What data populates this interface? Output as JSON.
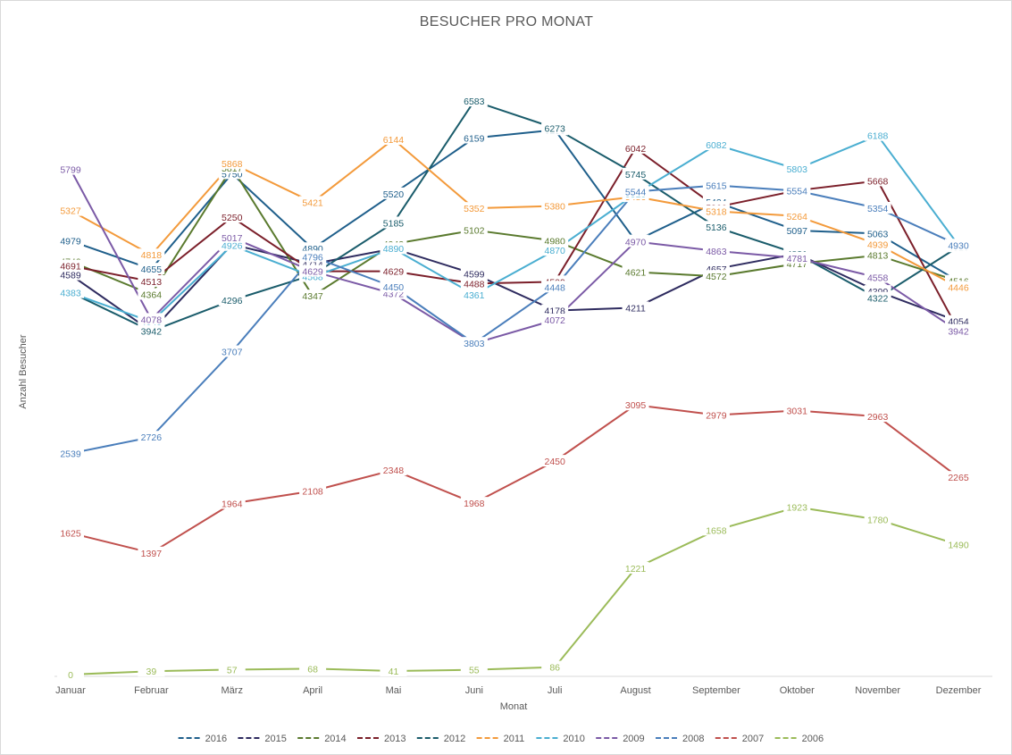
{
  "chart_data": {
    "type": "line",
    "title": "BESUCHER PRO MONAT",
    "xlabel": "Monat",
    "ylabel": "Anzahl Besucher",
    "ylim": [
      0,
      7200
    ],
    "grid": false,
    "legend_position": "bottom",
    "categories": [
      "Januar",
      "Februar",
      "März",
      "April",
      "Mai",
      "Juni",
      "Juli",
      "August",
      "September",
      "Oktober",
      "November",
      "Dezember"
    ],
    "series": [
      {
        "name": "2016",
        "color": "#1f5f8b",
        "values": [
          4979,
          4655,
          5750,
          4890,
          5520,
          6159,
          6253,
          4978,
          5424,
          5097,
          5063,
          4516
        ]
      },
      {
        "name": "2015",
        "color": "#2e2b5f",
        "values": [
          4589,
          3942,
          4938,
          4714,
          4890,
          4599,
          4178,
          4211,
          4657,
          4831,
          4399,
          4054
        ]
      },
      {
        "name": "2014",
        "color": "#5a7a2e",
        "values": [
          4743,
          4364,
          5817,
          4347,
          4943,
          5102,
          4980,
          4621,
          4572,
          4717,
          4813,
          4516
        ]
      },
      {
        "name": "2013",
        "color": "#7b1f2a",
        "values": [
          4691,
          4513,
          5250,
          4629,
          4629,
          4488,
          4509,
          6042,
          5366,
          5557,
          5668,
          3952
        ]
      },
      {
        "name": "2012",
        "color": "#1a5c6b",
        "values": [
          4388,
          3942,
          4296,
          4588,
          5185,
          6583,
          6273,
          5745,
          5136,
          4831,
          4322,
          4910
        ]
      },
      {
        "name": "2011",
        "color": "#f39a3b",
        "values": [
          5327,
          4818,
          5868,
          5421,
          6144,
          5352,
          5380,
          5486,
          5318,
          5264,
          4939,
          4446
        ]
      },
      {
        "name": "2010",
        "color": "#4aaed1",
        "values": [
          4383,
          4049,
          4926,
          4568,
          4890,
          4361,
          4870,
          5518,
          6082,
          5803,
          6188,
          4930
        ]
      },
      {
        "name": "2009",
        "color": "#7b5aa6",
        "values": [
          5799,
          4078,
          5017,
          4629,
          4372,
          3801,
          4072,
          4970,
          4863,
          4781,
          4558,
          3942
        ]
      },
      {
        "name": "2008",
        "color": "#4a7ebb",
        "values": [
          2539,
          2726,
          3707,
          4796,
          4450,
          3803,
          4448,
          5544,
          5615,
          5554,
          5354,
          4930
        ]
      },
      {
        "name": "2007",
        "color": "#c0504d",
        "values": [
          1625,
          1397,
          1964,
          2108,
          2348,
          1968,
          2450,
          3095,
          2979,
          3031,
          2963,
          2265
        ]
      },
      {
        "name": "2006",
        "color": "#9bbb59",
        "values": [
          0,
          39,
          57,
          68,
          41,
          55,
          86,
          1221,
          1658,
          1923,
          1780,
          1490
        ]
      }
    ]
  }
}
